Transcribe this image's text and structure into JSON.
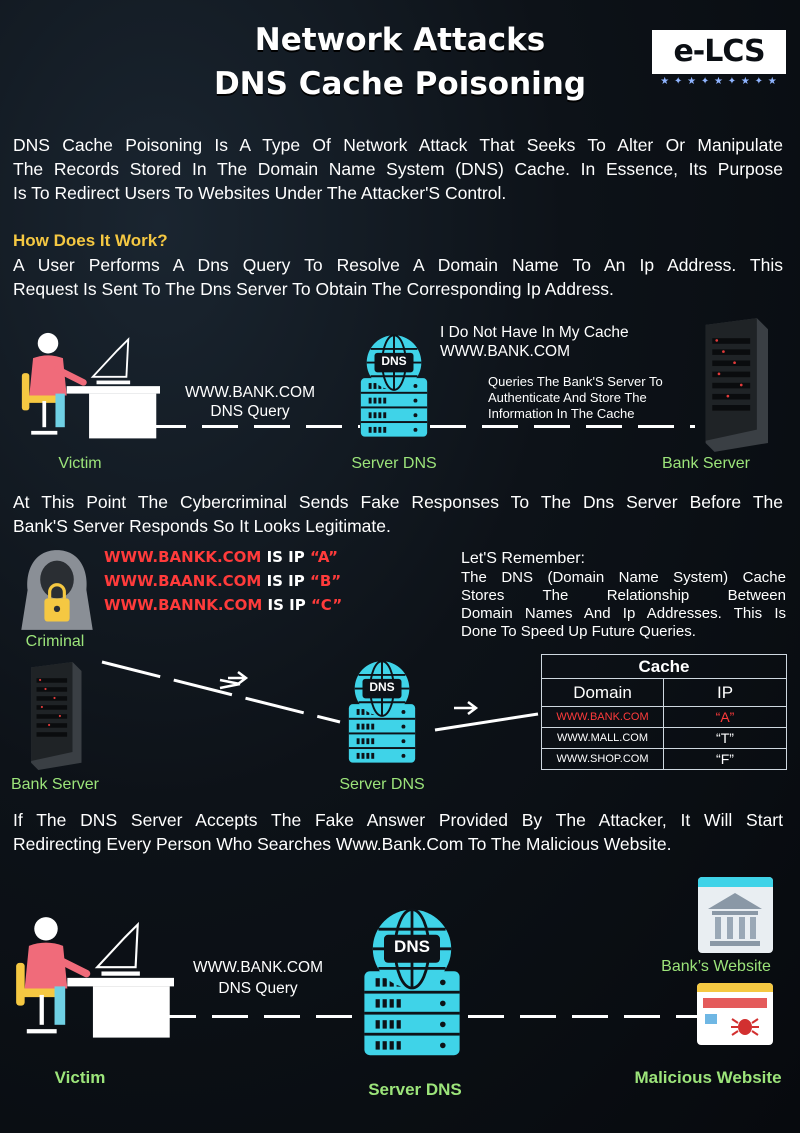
{
  "header": {
    "title_line1": "Network Attacks",
    "title_line2": "DNS Cache Poisoning",
    "logo": "e-LCS"
  },
  "intro": {
    "line1": "DNS Cache Poisoning Is A Type Of Network Attack That Seeks To Alter Or Manipulate",
    "line2": "The Records Stored In The Domain Name System (DNS) Cache. In Essence, Its Purpose",
    "line3": "Is To Redirect Users To Websites Under The Attacker'S Control."
  },
  "how": {
    "heading": "How Does It Work?",
    "line1": "A User Performs A Dns Query To Resolve A Domain Name To An Ip Address. This",
    "line2": "Request Is Sent To The Dns Server To Obtain The Corresponding Ip Address."
  },
  "diagram1": {
    "query_line1": "WWW.BANK.COM",
    "query_line2": "DNS Query",
    "cache_note_line1": "I Do Not Have In My Cache",
    "cache_note_line2": "WWW.BANK.COM",
    "queries_line1": "Queries The Bank'S Server To",
    "queries_line2": "Authenticate And Store The",
    "queries_line3": "Information In The Cache",
    "victim": "Victim",
    "server_dns": "Server DNS",
    "bank_server": "Bank Server",
    "dns_badge": "DNS"
  },
  "attack": {
    "line1": "At This Point The Cybercriminal Sends Fake Responses To The Dns Server Before The",
    "line2": "Bank'S Server Responds So It Looks Legitimate."
  },
  "diagram2": {
    "fake": [
      {
        "domain": "WWW.BANKK.COM",
        "is_ip": "IS IP",
        "ip": "“A”"
      },
      {
        "domain": "WWW.BAANK.COM",
        "is_ip": "IS IP",
        "ip": "“B”"
      },
      {
        "domain": "WWW.BANNK.COM",
        "is_ip": "IS IP",
        "ip": "“C”"
      }
    ],
    "criminal": "Criminal",
    "bank_server": "Bank Server",
    "server_dns": "Server DNS",
    "dns_badge": "DNS",
    "remember_title": "Let'S Remember:",
    "remember_line1": "The DNS (Domain Name System) Cache",
    "remember_line2": "Stores The Relationship Between",
    "remember_line3": "Domain Names And Ip Addresses. This Is",
    "remember_line4": "Done To Speed Up Future Queries.",
    "cache_title": "Cache",
    "col_domain": "Domain",
    "col_ip": "IP",
    "rows": [
      {
        "domain": "WWW.BANK.COM",
        "ip": "“A”"
      },
      {
        "domain": "WWW.MALL.COM",
        "ip": "“T”"
      },
      {
        "domain": "WWW.SHOP.COM",
        "ip": "“F”"
      }
    ]
  },
  "result": {
    "line1": "If The DNS Server Accepts The Fake Answer Provided By The Attacker, It Will Start",
    "line2": "Redirecting Every Person Who Searches Www.Bank.Com To The Malicious Website."
  },
  "diagram3": {
    "query_line1": "WWW.BANK.COM",
    "query_line2": "DNS Query",
    "victim": "Victim",
    "server_dns": "Server DNS",
    "bank_website": "Bank’s  Website",
    "malicious_website": "Malicious Website",
    "dns_badge": "DNS"
  },
  "colors": {
    "accent_cyan": "#3fd3e8",
    "red_text": "#ff3b3b",
    "green_label": "#9ce47a",
    "yellow_heading": "#f5c842"
  }
}
